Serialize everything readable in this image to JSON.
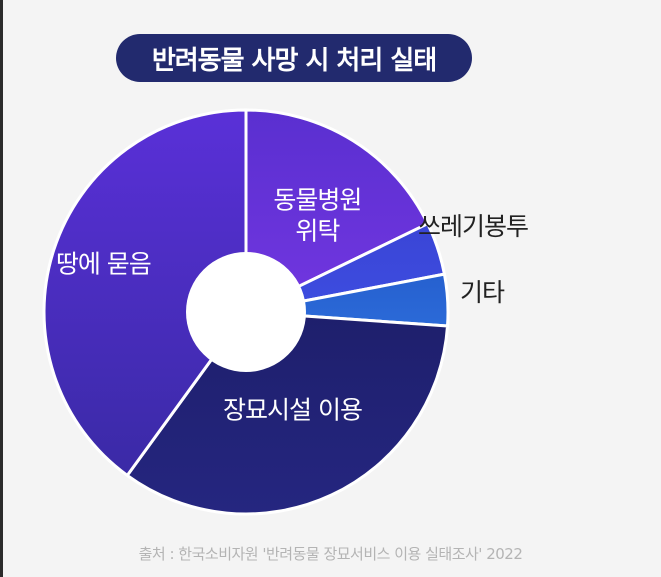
{
  "title": "반려동물 사망 시 처리 실태",
  "source": "출처 : 한국소비자원 '반려동물 장묘서비스 이용 실태조사' 2022",
  "colors": {
    "background": "#f4f4f4",
    "title_pill": "#222a6e",
    "inside_label": "#ffffff",
    "outside_label": "#222222",
    "source": "#b4b4b4"
  },
  "chart_data": {
    "type": "pie",
    "variant": "donut",
    "start": "12 o'clock, clockwise",
    "legend": "none",
    "categories": [
      "동물병원 위탁",
      "쓰레기봉투",
      "기타",
      "장묘시설 이용",
      "땅에 묻음"
    ],
    "values": [
      17.8,
      4.2,
      4.1,
      33.9,
      40.0
    ],
    "value_unit": "approx. percent (estimated, not printed)",
    "colors": [
      "#7236e0",
      "#3d4de0",
      "#2b6ad8",
      "#252680",
      "#3a2aa6"
    ],
    "gradient_to": [
      "#5a2fd0",
      "#3a45d6",
      "#2660cf",
      "#1e1f6c",
      "#5a30d8"
    ],
    "label_lines": [
      [
        "동물병원",
        "위탁"
      ],
      [
        "쓰레기봉투"
      ],
      [
        "기타"
      ],
      [
        "장묘시설 이용"
      ],
      [
        "땅에 묻음"
      ]
    ],
    "label_position": [
      "inside",
      "outside",
      "outside",
      "inside",
      "inside"
    ]
  }
}
